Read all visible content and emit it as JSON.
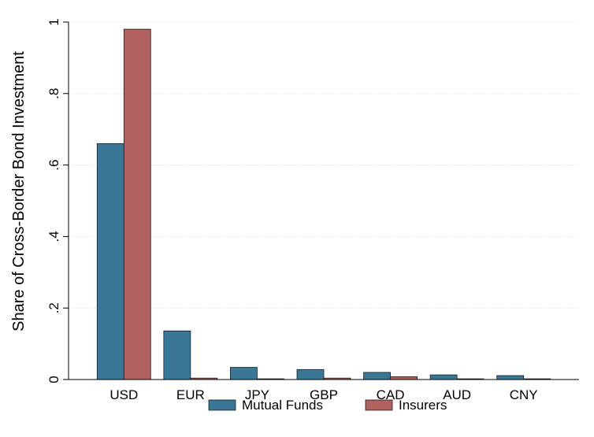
{
  "chart_data": {
    "type": "bar",
    "title": "",
    "xlabel": "",
    "ylabel": "Share of Cross-Border Bond Investment",
    "categories": [
      "USD",
      "EUR",
      "JPY",
      "GBP",
      "CAD",
      "AUD",
      "CNY"
    ],
    "series": [
      {
        "name": "Mutual Funds",
        "color": "#3a7696",
        "values": [
          0.66,
          0.136,
          0.034,
          0.028,
          0.02,
          0.013,
          0.011
        ]
      },
      {
        "name": "Insurers",
        "color": "#b0605e",
        "values": [
          0.98,
          0.004,
          0.002,
          0.004,
          0.008,
          0.002,
          0.002
        ]
      }
    ],
    "ylim": [
      0,
      1
    ],
    "yticks": [
      {
        "value": 0,
        "label": "0"
      },
      {
        "value": 0.2,
        "label": ".2"
      },
      {
        "value": 0.4,
        "label": ".4"
      },
      {
        "value": 0.6,
        "label": ".6"
      },
      {
        "value": 0.8,
        "label": ".8"
      },
      {
        "value": 1,
        "label": "1"
      }
    ],
    "grid": true,
    "legend_position": "bottom"
  }
}
